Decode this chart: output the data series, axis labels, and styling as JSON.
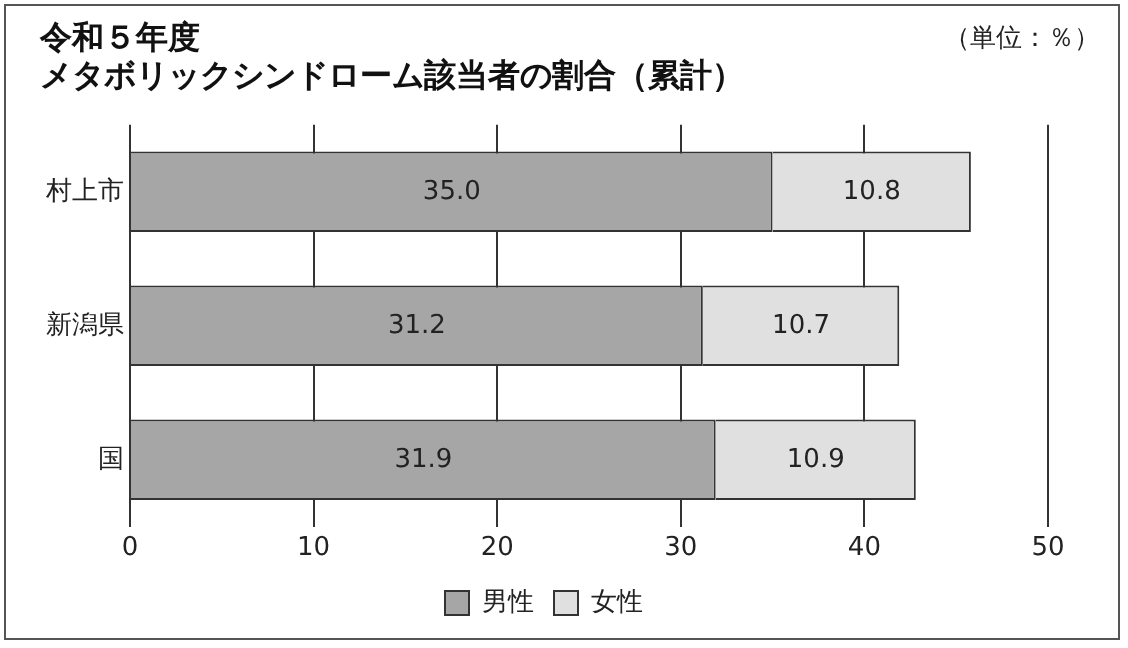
{
  "chart_data": {
    "type": "bar",
    "orientation": "horizontal",
    "stacked": true,
    "title": "令和５年度",
    "subtitle": "メタボリックシンドローム該当者の割合（累計）",
    "annotations": [
      "（単位：％）"
    ],
    "categories": [
      "村上市",
      "新潟県",
      "国"
    ],
    "series": [
      {
        "name": "男性",
        "color": "#a6a6a6",
        "values": [
          35.0,
          31.2,
          31.9
        ],
        "value_labels": [
          "35.0",
          "31.2",
          "31.9"
        ]
      },
      {
        "name": "女性",
        "color": "#e0e0e0",
        "values": [
          10.8,
          10.7,
          10.9
        ],
        "value_labels": [
          "10.8",
          "10.7",
          "10.9"
        ]
      }
    ],
    "xlim": [
      0,
      50
    ],
    "xticks": [
      0,
      10,
      20,
      30,
      40,
      50
    ],
    "grid": "x",
    "legend": "bottom"
  }
}
